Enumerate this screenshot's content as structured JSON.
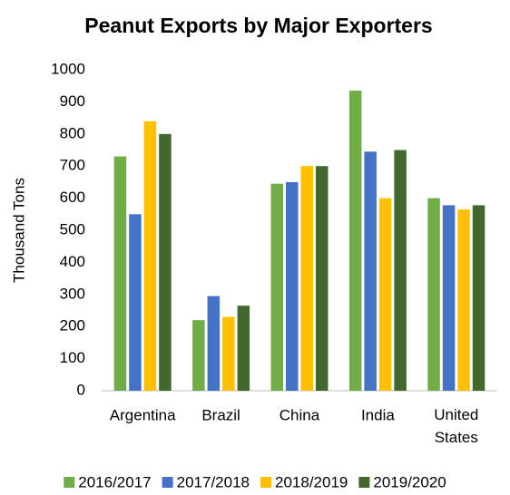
{
  "chart_data": {
    "type": "bar",
    "title": "Peanut Exports by Major Exporters",
    "y_label": "Thousand Tons",
    "categories": [
      "Argentina",
      "Brazil",
      "China",
      "India",
      "United States"
    ],
    "series": [
      {
        "name": "2016/2017",
        "color": "#70ad47",
        "values": [
          730,
          220,
          645,
          935,
          600
        ]
      },
      {
        "name": "2017/2018",
        "color": "#4472c4",
        "values": [
          550,
          295,
          650,
          745,
          578
        ]
      },
      {
        "name": "2018/2019",
        "color": "#ffc000",
        "values": [
          840,
          230,
          700,
          600,
          565
        ]
      },
      {
        "name": "2019/2020",
        "color": "#43682b",
        "values": [
          800,
          265,
          700,
          750,
          578
        ]
      }
    ],
    "ylim": [
      0,
      1000
    ],
    "yticks": [
      0,
      100,
      200,
      300,
      400,
      500,
      600,
      700,
      800,
      900,
      1000
    ],
    "grid": false,
    "legend": "bottom"
  }
}
